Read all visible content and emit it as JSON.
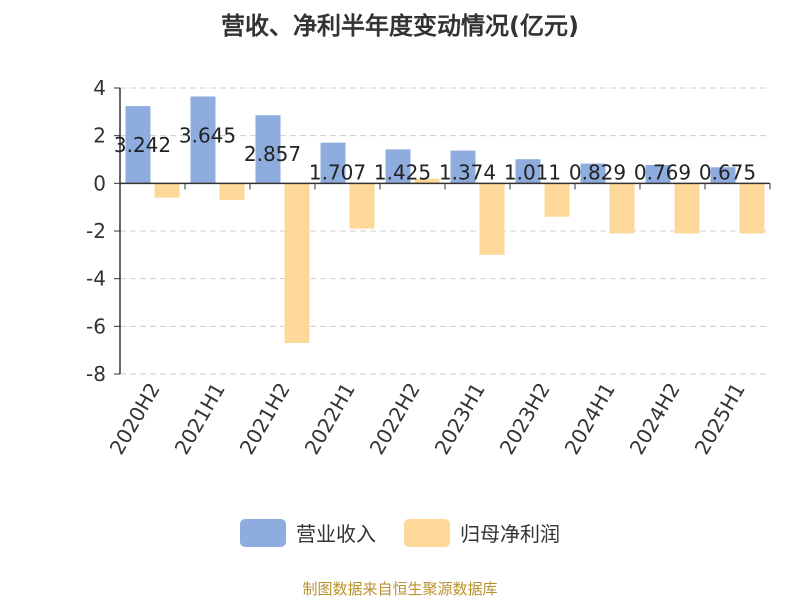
{
  "title": "营收、净利半年度变动情况(亿元)",
  "source": "制图数据来自恒生聚源数据库",
  "colors": {
    "revenue": "#8eadde",
    "profit": "#fdd898",
    "grid": "#cccccc",
    "axis": "#333333"
  },
  "chart_data": {
    "type": "bar",
    "title": "营收、净利半年度变动情况(亿元)",
    "xlabel": "",
    "ylabel": "",
    "ylim": [
      -8,
      4
    ],
    "yticks": [
      4,
      2,
      0,
      -2,
      -4,
      -6,
      -8
    ],
    "categories": [
      "2020H2",
      "2021H1",
      "2021H2",
      "2022H1",
      "2022H2",
      "2023H1",
      "2023H2",
      "2024H1",
      "2024H2",
      "2025H1"
    ],
    "grid": true,
    "legend_position": "bottom",
    "series": [
      {
        "name": "营业收入",
        "values": [
          3.242,
          3.645,
          2.857,
          1.707,
          1.425,
          1.374,
          1.011,
          0.829,
          0.769,
          0.675
        ],
        "labels": [
          "3.242",
          "3.645",
          "2.857",
          "1.707",
          "1.425",
          "1.374",
          "1.011",
          "0.829",
          "0.769",
          "0.675"
        ]
      },
      {
        "name": "归母净利润",
        "values": [
          -0.6,
          -0.7,
          -6.7,
          -1.9,
          0.2,
          -3.0,
          -1.4,
          -2.1,
          -2.1,
          -2.1
        ]
      }
    ]
  }
}
